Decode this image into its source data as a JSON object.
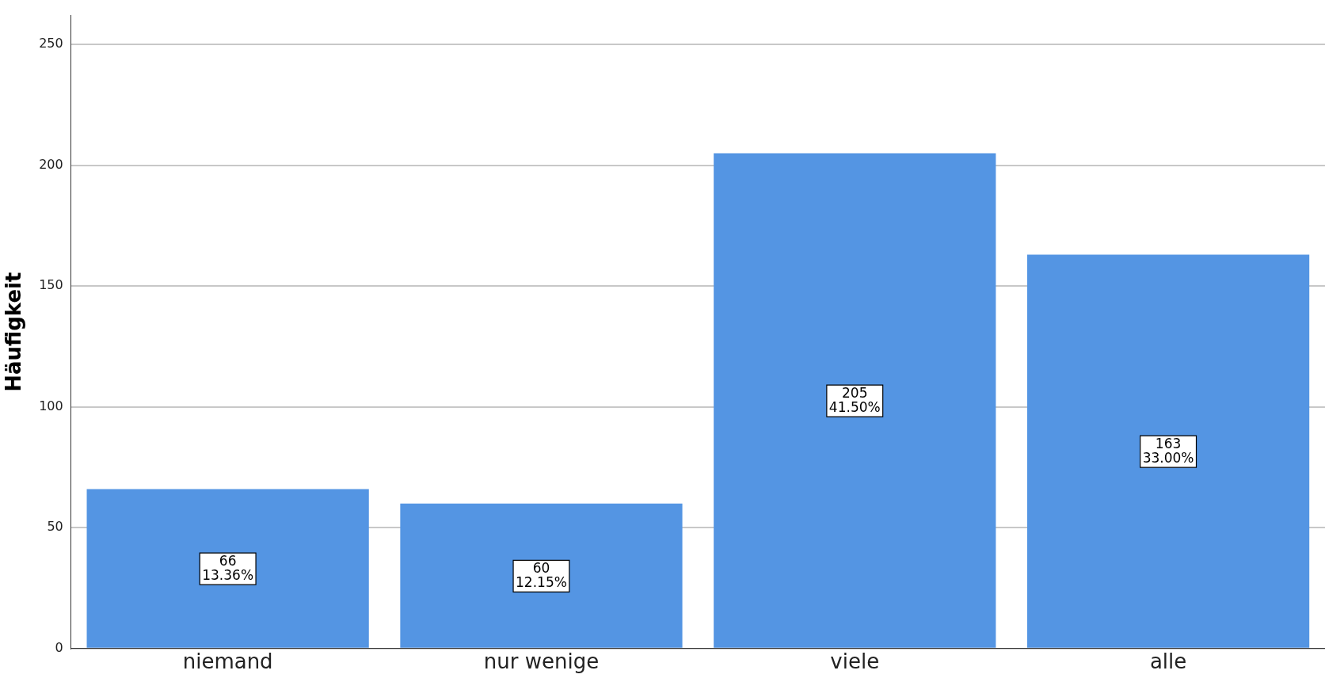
{
  "chart_data": {
    "type": "bar",
    "ylabel": "Häufigkeit",
    "categories": [
      "niemand",
      "nur wenige",
      "viele",
      "alle"
    ],
    "values": [
      66,
      60,
      205,
      163
    ],
    "color": "#5495e3",
    "value_labels": [
      "66\n13.36%",
      "60\n12.15%",
      "205\n41.50%",
      "163\n33.00%"
    ],
    "ylim": [
      0,
      262
    ],
    "yticks": [
      0,
      50,
      100,
      150,
      200,
      250
    ],
    "grid": "y",
    "legend": false
  }
}
